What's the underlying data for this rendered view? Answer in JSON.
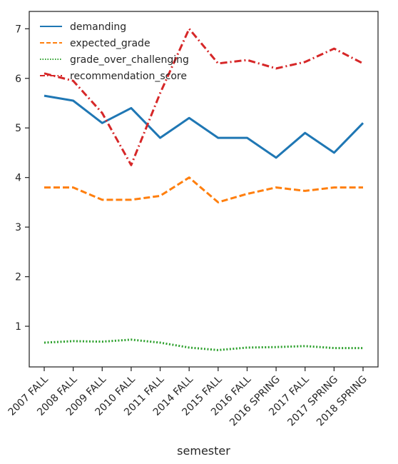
{
  "chart_data": {
    "type": "line",
    "title": "",
    "xlabel": "semester",
    "ylabel": "",
    "categories": [
      "2007 FALL",
      "2008 FALL",
      "2009 FALL",
      "2010 FALL",
      "2011 FALL",
      "2014 FALL",
      "2015 FALL",
      "2016 FALL",
      "2016 SPRING",
      "2017 FALL",
      "2017 SPRING",
      "2018 SPRING"
    ],
    "yticks": [
      1,
      2,
      3,
      4,
      5,
      6,
      7
    ],
    "ylim": [
      0.18,
      7.35
    ],
    "legend_position": "top-left",
    "series": [
      {
        "name": "demanding",
        "color": "#1f77b4",
        "style": "solid",
        "values": [
          5.65,
          5.55,
          5.1,
          5.4,
          4.8,
          5.2,
          4.8,
          4.8,
          4.4,
          4.9,
          4.5,
          5.1
        ]
      },
      {
        "name": "expected_grade",
        "color": "#ff7f0e",
        "style": "dashed",
        "values": [
          3.8,
          3.8,
          3.55,
          3.55,
          3.63,
          4.0,
          3.5,
          3.67,
          3.8,
          3.73,
          3.8,
          3.8
        ]
      },
      {
        "name": "grade_over_challenging",
        "color": "#2ca02c",
        "style": "dotted",
        "values": [
          0.67,
          0.7,
          0.69,
          0.73,
          0.67,
          0.57,
          0.52,
          0.57,
          0.58,
          0.6,
          0.56,
          0.56
        ]
      },
      {
        "name": "recommendation_score",
        "color": "#d62728",
        "style": "dashdot",
        "values": [
          6.1,
          5.95,
          5.3,
          4.25,
          5.7,
          7.0,
          6.3,
          6.37,
          6.2,
          6.33,
          6.6,
          6.3
        ]
      }
    ]
  }
}
